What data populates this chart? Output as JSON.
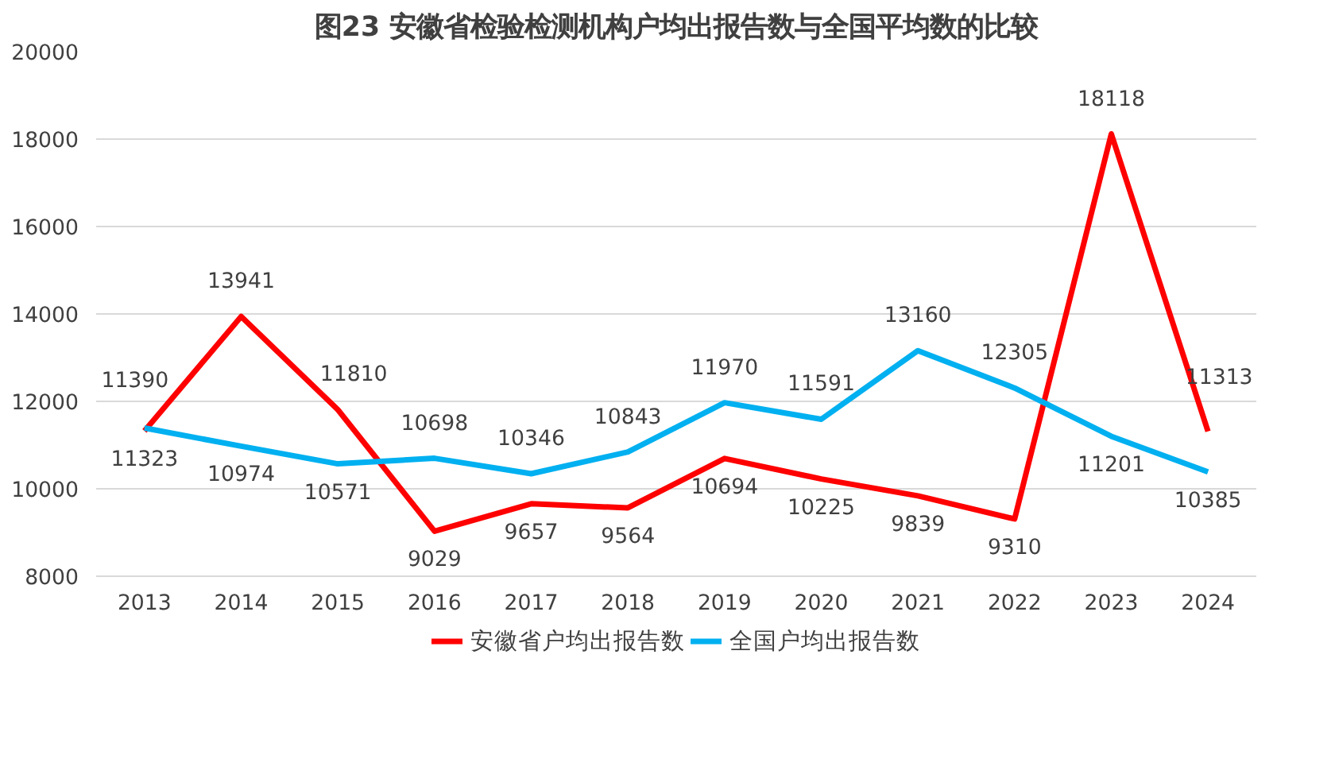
{
  "chart_data": {
    "type": "line",
    "title": "图23 安徽省检验检测机构户均出报告数与全国平均数的比较",
    "categories": [
      "2013",
      "2014",
      "2015",
      "2016",
      "2017",
      "2018",
      "2019",
      "2020",
      "2021",
      "2022",
      "2023",
      "2024"
    ],
    "series": [
      {
        "name": "安徽省户均出报告数",
        "color": "#ff0000",
        "values": [
          11323,
          13941,
          11810,
          9029,
          9657,
          9564,
          10694,
          10225,
          9839,
          9310,
          18118,
          11313
        ]
      },
      {
        "name": "全国户均出报告数",
        "color": "#00b0f0",
        "values": [
          11390,
          10974,
          10571,
          10698,
          10346,
          10843,
          11970,
          11591,
          13160,
          12305,
          11201,
          10385
        ]
      }
    ],
    "ylim": [
      8000,
      20000
    ],
    "yticks": [
      8000,
      10000,
      12000,
      14000,
      16000,
      18000,
      20000
    ],
    "grid": "y",
    "legend": "bottom",
    "data_labels": true,
    "marker": "none",
    "line_style": "solid"
  }
}
